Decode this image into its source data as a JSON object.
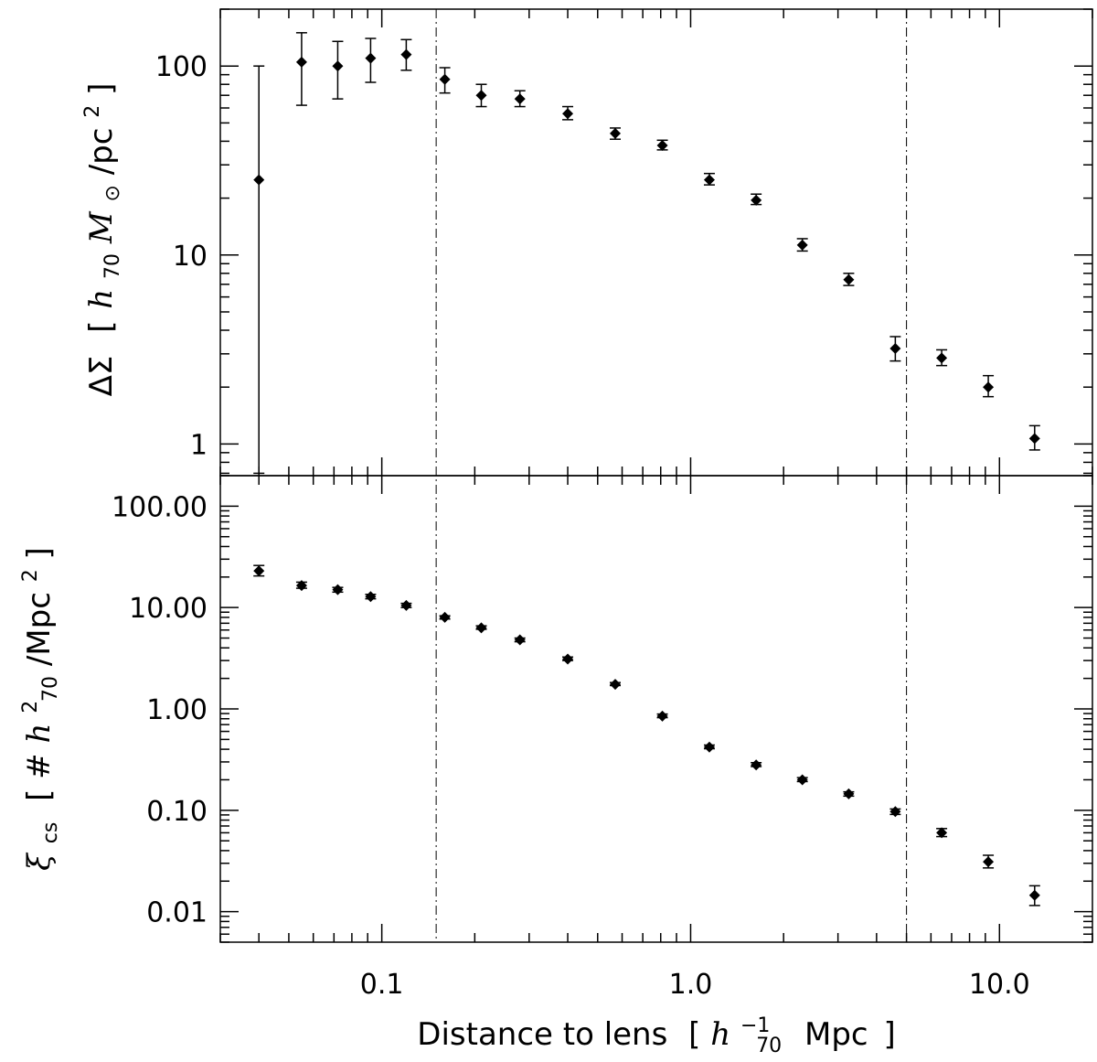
{
  "chart_data": [
    {
      "type": "scatter",
      "panel": "top",
      "title": "",
      "ylabel_parts": {
        "symbol": "ΔΣ",
        "open": "[",
        "h": "h",
        "h_sub": "70",
        "m": "M",
        "m_sub": "⊙",
        "unit": "/pc",
        "unit_sup": "2",
        "close": "]"
      },
      "y_scale": "log",
      "ylim": [
        0.68,
        200
      ],
      "y_ticks": [
        1,
        10,
        100
      ],
      "y_tick_labels": [
        "1",
        "10",
        "100"
      ],
      "x_scale": "log",
      "series": [
        {
          "x": [
            0.04,
            0.055,
            0.072,
            0.092,
            0.12,
            0.16,
            0.21,
            0.28,
            0.4,
            0.57,
            0.81,
            1.15,
            1.63,
            2.3,
            3.25,
            4.6,
            6.5,
            9.2,
            13.0
          ],
          "y": [
            25,
            105,
            100,
            110,
            115,
            85,
            70,
            67,
            56,
            44,
            38,
            25,
            19.5,
            11.3,
            7.4,
            3.2,
            2.85,
            2.0,
            1.07
          ],
          "y_low": [
            0.7,
            62,
            67,
            82,
            95,
            72,
            61,
            61,
            52,
            41,
            36,
            23.5,
            18.5,
            10.5,
            6.9,
            2.75,
            2.6,
            1.78,
            0.93
          ],
          "y_high": [
            100,
            150,
            135,
            140,
            138,
            98,
            80,
            74,
            61,
            47,
            40.5,
            27,
            21,
            12.2,
            8.0,
            3.7,
            3.15,
            2.3,
            1.25
          ]
        }
      ]
    },
    {
      "type": "scatter",
      "panel": "bottom",
      "title": "",
      "ylabel_parts": {
        "symbol": "ξ",
        "symbol_sub": "cs",
        "open": "[",
        "hash": "#",
        "h": "h",
        "h_sup": "2",
        "h_sub": "70",
        "unit": "/Mpc",
        "unit_sup": "2",
        "close": "]"
      },
      "y_scale": "log",
      "ylim": [
        0.005,
        200
      ],
      "y_ticks": [
        0.01,
        0.1,
        1,
        10,
        100
      ],
      "y_tick_labels": [
        "0.01",
        "0.10",
        "1.00",
        "10.00",
        "100.00"
      ],
      "x_scale": "log",
      "xlim": [
        0.03,
        20
      ],
      "x_ticks": [
        0.1,
        1,
        10
      ],
      "x_tick_labels": [
        "0.1",
        "1.0",
        "10.0"
      ],
      "xlabel_parts": {
        "text": "Distance to lens",
        "open": "[",
        "h": "h",
        "h_sup": "−1",
        "h_sub": "70",
        "unit": "Mpc",
        "close": "]"
      },
      "series": [
        {
          "x": [
            0.04,
            0.055,
            0.072,
            0.092,
            0.12,
            0.16,
            0.21,
            0.28,
            0.4,
            0.57,
            0.81,
            1.15,
            1.63,
            2.3,
            3.25,
            4.6,
            6.5,
            9.2,
            13.0
          ],
          "y": [
            23,
            16.5,
            15,
            12.8,
            10.5,
            8.0,
            6.3,
            4.8,
            3.1,
            1.75,
            0.85,
            0.42,
            0.28,
            0.2,
            0.145,
            0.097,
            0.06,
            0.031,
            0.0145
          ],
          "y_low": [
            20.5,
            15.5,
            14.2,
            12.2,
            10.0,
            7.7,
            6.1,
            4.6,
            3.0,
            1.7,
            0.82,
            0.405,
            0.27,
            0.192,
            0.138,
            0.091,
            0.055,
            0.027,
            0.0115
          ],
          "y_high": [
            26,
            17.8,
            15.8,
            13.5,
            11.0,
            8.3,
            6.6,
            5.0,
            3.25,
            1.82,
            0.89,
            0.44,
            0.295,
            0.21,
            0.152,
            0.103,
            0.066,
            0.036,
            0.018
          ]
        }
      ]
    }
  ],
  "reference_lines": {
    "x": [
      0.15,
      5.0
    ],
    "style": "dash-dot"
  }
}
